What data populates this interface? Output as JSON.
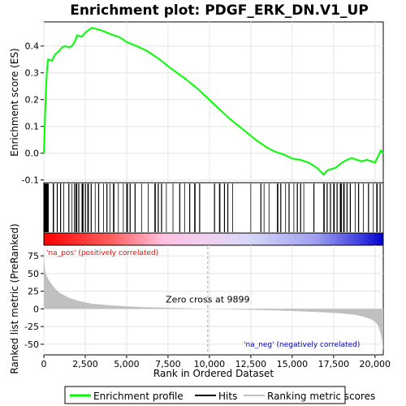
{
  "chart_data": {
    "type": "line",
    "title": "Enrichment plot: PDGF_ERK_DN.V1_UP",
    "xlabel": "Rank in Ordered Dataset",
    "ylabel_top": "Enrichment score (ES)",
    "ylabel_bottom": "Ranked list metric (PreRanked)",
    "xlim": [
      0,
      20500
    ],
    "es_ylim": [
      -0.11,
      0.49
    ],
    "metric_ylim": [
      -65,
      90
    ],
    "x_ticks": [
      0,
      2500,
      5000,
      7500,
      10000,
      12500,
      15000,
      17500,
      20000
    ],
    "x_tick_labels": [
      "0",
      "2,500",
      "5,000",
      "7,500",
      "10,000",
      "12,500",
      "15,000",
      "17,500",
      "20,000"
    ],
    "es_ticks": [
      -0.1,
      0.0,
      0.1,
      0.2,
      0.3,
      0.4
    ],
    "es_tick_labels": [
      "-0.1",
      "0.0",
      "0.1",
      "0.2",
      "0.3",
      "0.4"
    ],
    "metric_ticks": [
      -50,
      -25,
      0,
      25,
      50,
      75
    ],
    "metric_tick_labels": [
      "-50",
      "-25",
      "0",
      "25",
      "50",
      "75"
    ],
    "zero_cross_rank": 9899,
    "zero_cross_label": "Zero cross at 9899",
    "pos_label": "'na_pos' (positively correlated)",
    "neg_label": "'na_neg' (negatively correlated)",
    "colors": {
      "es_line": "#00ff00",
      "pos_label": "#ff0000",
      "neg_label": "#0000aa",
      "metric_fill": "#c0c0c0"
    },
    "es_curve": [
      [
        0,
        0.0
      ],
      [
        40,
        0.07
      ],
      [
        80,
        0.15
      ],
      [
        120,
        0.22
      ],
      [
        160,
        0.28
      ],
      [
        200,
        0.32
      ],
      [
        260,
        0.35
      ],
      [
        500,
        0.345
      ],
      [
        600,
        0.36
      ],
      [
        700,
        0.37
      ],
      [
        900,
        0.38
      ],
      [
        1100,
        0.395
      ],
      [
        1300,
        0.4
      ],
      [
        1500,
        0.395
      ],
      [
        1700,
        0.4
      ],
      [
        1900,
        0.42
      ],
      [
        2000,
        0.44
      ],
      [
        2300,
        0.435
      ],
      [
        2500,
        0.45
      ],
      [
        2700,
        0.46
      ],
      [
        2900,
        0.468
      ],
      [
        3100,
        0.465
      ],
      [
        3500,
        0.458
      ],
      [
        4000,
        0.445
      ],
      [
        4600,
        0.432
      ],
      [
        5000,
        0.415
      ],
      [
        5600,
        0.4
      ],
      [
        6200,
        0.383
      ],
      [
        7000,
        0.35
      ],
      [
        7600,
        0.32
      ],
      [
        8500,
        0.28
      ],
      [
        9300,
        0.24
      ],
      [
        9900,
        0.205
      ],
      [
        10500,
        0.17
      ],
      [
        11200,
        0.13
      ],
      [
        12000,
        0.09
      ],
      [
        12800,
        0.05
      ],
      [
        13500,
        0.02
      ],
      [
        14000,
        0.005
      ],
      [
        14500,
        -0.005
      ],
      [
        15000,
        -0.02
      ],
      [
        15500,
        -0.025
      ],
      [
        16000,
        -0.035
      ],
      [
        16500,
        -0.055
      ],
      [
        16900,
        -0.08
      ],
      [
        17100,
        -0.065
      ],
      [
        17300,
        -0.06
      ],
      [
        17600,
        -0.055
      ],
      [
        17800,
        -0.045
      ],
      [
        18000,
        -0.035
      ],
      [
        18300,
        -0.025
      ],
      [
        18600,
        -0.018
      ],
      [
        18900,
        -0.025
      ],
      [
        19200,
        -0.03
      ],
      [
        19500,
        -0.025
      ],
      [
        19800,
        -0.03
      ],
      [
        20000,
        -0.035
      ],
      [
        20200,
        -0.01
      ],
      [
        20350,
        0.01
      ],
      [
        20500,
        0.0
      ]
    ],
    "metric_curve": [
      [
        0,
        88
      ],
      [
        50,
        60
      ],
      [
        100,
        52
      ],
      [
        200,
        45
      ],
      [
        400,
        37
      ],
      [
        700,
        28
      ],
      [
        1000,
        22
      ],
      [
        1500,
        16
      ],
      [
        2000,
        12
      ],
      [
        2500,
        9
      ],
      [
        3000,
        7
      ],
      [
        4000,
        5
      ],
      [
        5000,
        3.5
      ],
      [
        6000,
        2.5
      ],
      [
        7000,
        1.8
      ],
      [
        8000,
        1.2
      ],
      [
        9000,
        0.6
      ],
      [
        9899,
        0
      ],
      [
        11000,
        -0.5
      ],
      [
        12000,
        -1
      ],
      [
        13000,
        -1.5
      ],
      [
        14000,
        -2.2
      ],
      [
        15000,
        -3
      ],
      [
        16000,
        -4
      ],
      [
        17000,
        -5
      ],
      [
        18000,
        -6.5
      ],
      [
        18800,
        -8.5
      ],
      [
        19300,
        -11
      ],
      [
        19700,
        -14
      ],
      [
        20000,
        -18
      ],
      [
        20200,
        -24
      ],
      [
        20350,
        -35
      ],
      [
        20450,
        -50
      ],
      [
        20500,
        -60
      ]
    ],
    "hits_segments": [
      [
        20,
        200,
        0.9
      ],
      [
        230,
        60,
        0.7
      ],
      [
        560,
        50,
        0.6
      ],
      [
        800,
        40,
        0.5
      ],
      [
        1000,
        40,
        0.5
      ],
      [
        1200,
        30,
        0.4
      ],
      [
        1500,
        40,
        0.5
      ],
      [
        1700,
        30,
        0.4
      ],
      [
        1850,
        40,
        0.6
      ],
      [
        1950,
        60,
        0.7
      ],
      [
        2100,
        40,
        0.5
      ],
      [
        2300,
        90,
        0.8
      ],
      [
        2500,
        40,
        0.5
      ],
      [
        2650,
        60,
        0.7
      ],
      [
        2850,
        40,
        0.5
      ],
      [
        3100,
        30,
        0.4
      ],
      [
        3300,
        40,
        0.5
      ],
      [
        3600,
        30,
        0.4
      ],
      [
        3800,
        40,
        0.5
      ],
      [
        4000,
        30,
        0.4
      ],
      [
        4200,
        60,
        0.6
      ],
      [
        4500,
        30,
        0.4
      ],
      [
        4800,
        30,
        0.4
      ],
      [
        5000,
        70,
        0.7
      ],
      [
        5200,
        40,
        0.5
      ],
      [
        5500,
        40,
        0.5
      ],
      [
        5900,
        30,
        0.4
      ],
      [
        6300,
        30,
        0.4
      ],
      [
        6700,
        60,
        0.6
      ],
      [
        6900,
        40,
        0.5
      ],
      [
        7100,
        40,
        0.5
      ],
      [
        7400,
        30,
        0.4
      ],
      [
        7800,
        30,
        0.4
      ],
      [
        8200,
        40,
        0.5
      ],
      [
        8500,
        30,
        0.4
      ],
      [
        8800,
        40,
        0.5
      ],
      [
        9100,
        60,
        0.6
      ],
      [
        9400,
        40,
        0.5
      ],
      [
        10300,
        40,
        0.5
      ],
      [
        10600,
        60,
        0.6
      ],
      [
        10900,
        40,
        0.5
      ],
      [
        11100,
        40,
        0.5
      ],
      [
        11400,
        30,
        0.4
      ],
      [
        12500,
        30,
        0.4
      ],
      [
        13100,
        40,
        0.5
      ],
      [
        13300,
        30,
        0.4
      ],
      [
        13600,
        30,
        0.4
      ],
      [
        14100,
        60,
        0.6
      ],
      [
        14300,
        40,
        0.5
      ],
      [
        14600,
        30,
        0.4
      ],
      [
        14800,
        40,
        0.5
      ],
      [
        15100,
        30,
        0.4
      ],
      [
        15300,
        40,
        0.5
      ],
      [
        15500,
        40,
        0.5
      ],
      [
        15700,
        30,
        0.4
      ],
      [
        16300,
        40,
        0.5
      ],
      [
        16900,
        60,
        0.6
      ],
      [
        17100,
        40,
        0.5
      ],
      [
        17300,
        40,
        0.5
      ],
      [
        17500,
        60,
        0.7
      ],
      [
        17700,
        40,
        0.5
      ],
      [
        17900,
        90,
        0.8
      ],
      [
        18100,
        60,
        0.7
      ],
      [
        18300,
        40,
        0.5
      ],
      [
        18500,
        40,
        0.5
      ],
      [
        18800,
        30,
        0.4
      ],
      [
        19000,
        40,
        0.5
      ],
      [
        19300,
        30,
        0.4
      ],
      [
        19600,
        40,
        0.5
      ],
      [
        19900,
        30,
        0.4
      ],
      [
        20100,
        60,
        0.6
      ],
      [
        20300,
        40,
        0.5
      ]
    ]
  },
  "legend": {
    "items": [
      {
        "label": "Enrichment profile"
      },
      {
        "label": "Hits"
      },
      {
        "label": "Ranking metric scores"
      }
    ]
  }
}
